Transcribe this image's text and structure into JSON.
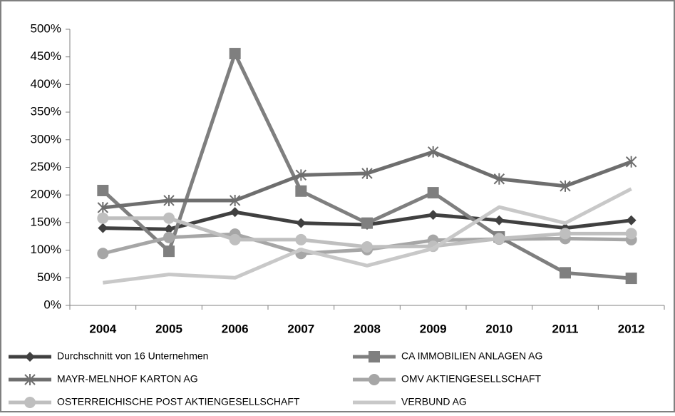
{
  "chart_data": {
    "type": "line",
    "categories": [
      "2004",
      "2005",
      "2006",
      "2007",
      "2008",
      "2009",
      "2010",
      "2011",
      "2012"
    ],
    "ylim": [
      0,
      500
    ],
    "yticks": [
      {
        "value": 0,
        "label": "0%"
      },
      {
        "value": 50,
        "label": "50%"
      },
      {
        "value": 100,
        "label": "100%"
      },
      {
        "value": 150,
        "label": "150%"
      },
      {
        "value": 200,
        "label": "200%"
      },
      {
        "value": 250,
        "label": "250%"
      },
      {
        "value": 300,
        "label": "300%"
      },
      {
        "value": 350,
        "label": "350%"
      },
      {
        "value": 400,
        "label": "400%"
      },
      {
        "value": 450,
        "label": "450%"
      },
      {
        "value": 500,
        "label": "500%"
      }
    ],
    "series": [
      {
        "name": "Durchschnitt von 16 Unternehmen",
        "color": "#404040",
        "marker": "diamond",
        "values": [
          140,
          138,
          169,
          149,
          146,
          164,
          154,
          140,
          154
        ]
      },
      {
        "name": "CA IMMOBILIEN ANLAGEN AG",
        "color": "#7f7f7f",
        "marker": "square",
        "values": [
          208,
          98,
          456,
          207,
          149,
          204,
          124,
          59,
          49
        ]
      },
      {
        "name": "MAYR-MELNHOF KARTON AG",
        "color": "#6e6e6e",
        "marker": "star",
        "values": [
          177,
          190,
          190,
          236,
          239,
          278,
          229,
          216,
          260
        ]
      },
      {
        "name": "OMV AKTIENGESELLSCHAFT",
        "color": "#a6a6a6",
        "marker": "circle",
        "values": [
          94,
          123,
          129,
          94,
          101,
          118,
          120,
          121,
          119
        ]
      },
      {
        "name": "OSTERREICHISCHE POST AKTIENGESELLSCHAFT",
        "color": "#bfbfbf",
        "marker": "circle",
        "values": [
          158,
          158,
          119,
          119,
          106,
          107,
          121,
          130,
          130
        ]
      },
      {
        "name": "VERBUND AG",
        "color": "#c8c8c8",
        "marker": "none",
        "values": [
          41,
          56,
          50,
          101,
          72,
          103,
          178,
          149,
          211
        ]
      }
    ]
  }
}
